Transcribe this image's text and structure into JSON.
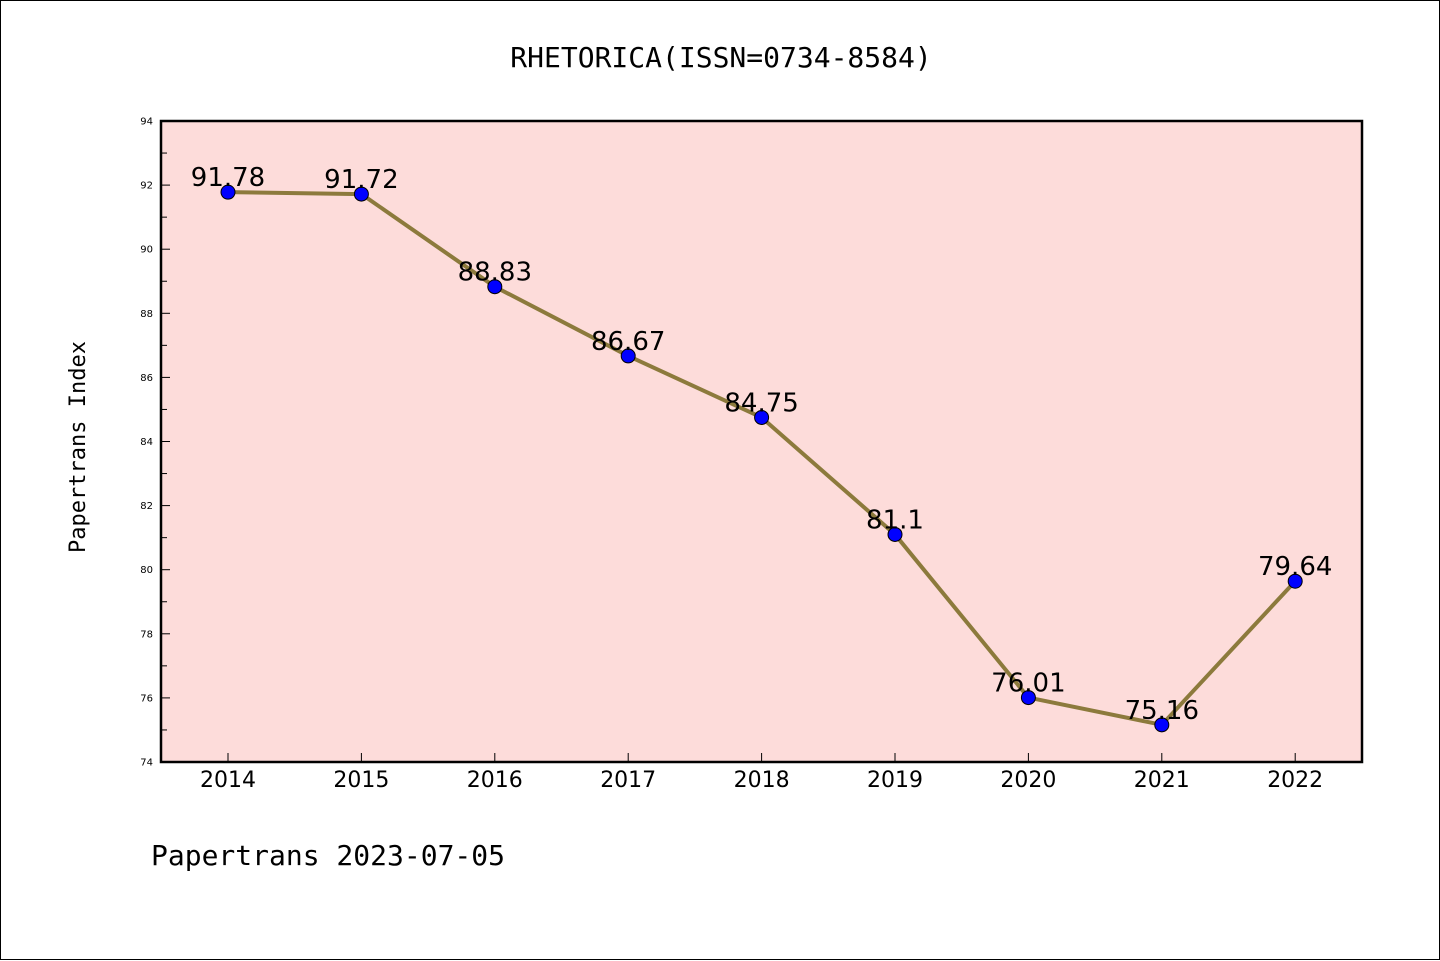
{
  "chart_data": {
    "type": "line",
    "title": "RHETORICA(ISSN=0734-8584)",
    "xlabel": "",
    "ylabel": "Papertrans Index",
    "categories": [
      "2014",
      "2015",
      "2016",
      "2017",
      "2018",
      "2019",
      "2020",
      "2021",
      "2022"
    ],
    "values": [
      91.78,
      91.72,
      88.83,
      86.67,
      84.75,
      81.1,
      76.01,
      75.16,
      79.64
    ],
    "data_labels": [
      "91.78",
      "91.72",
      "88.83",
      "86.67",
      "84.75",
      "81.1",
      "76.01",
      "75.16",
      "79.64"
    ],
    "ylim": [
      74,
      94
    ],
    "yticks": [
      "74",
      "76",
      "78",
      "80",
      "82",
      "84",
      "86",
      "88",
      "90",
      "92",
      "94"
    ],
    "grid": false,
    "colors": {
      "plot_background": "#fddcda",
      "line": "#8c7a3c",
      "marker": "#0000ff"
    }
  },
  "footer": {
    "text": "Papertrans 2023-07-05"
  }
}
